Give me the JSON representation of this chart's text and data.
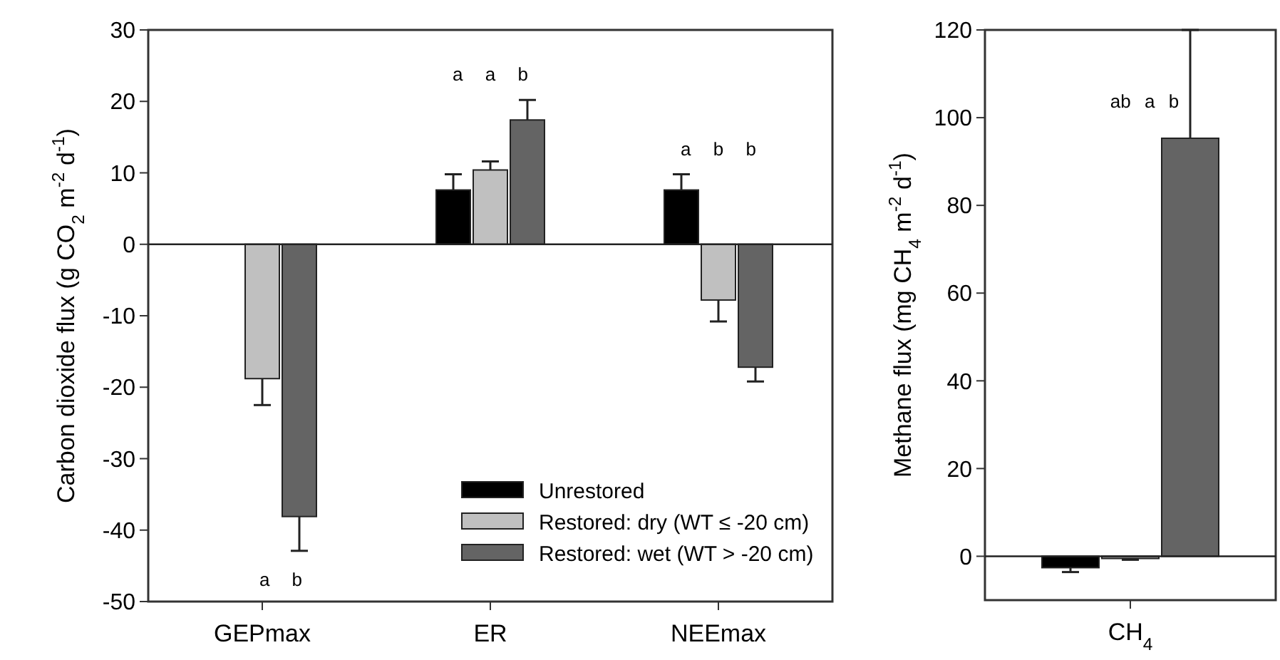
{
  "chart_data": [
    {
      "type": "bar",
      "ylabel": "Carbon dioxide flux (g CO$_{2}$ m$^{-2}$ d$^{-1}$)",
      "categories": [
        "GEPmax",
        "ER",
        "NEEmax"
      ],
      "ylim": [
        -50,
        30
      ],
      "yticks": [
        -50,
        -40,
        -30,
        -20,
        -10,
        0,
        10,
        20,
        30
      ],
      "legend": "bottom right",
      "series": [
        {
          "name": "Unrestored",
          "color": "#000000",
          "values": [
            null,
            7.6,
            7.6
          ],
          "errors": [
            null,
            2.2,
            2.2
          ]
        },
        {
          "name": "Restored: dry (WT ≤ -20 cm)",
          "color": "#c0c0c0",
          "values": [
            -18.8,
            10.4,
            -7.8
          ],
          "errors": [
            3.7,
            1.2,
            3
          ]
        },
        {
          "name": "Restored: wet (WT > -20 cm)",
          "color": "#646464",
          "values": [
            -38.1,
            17.4,
            -17.2
          ],
          "errors": [
            4.8,
            2.8,
            2
          ]
        }
      ],
      "annotations": [
        "a b",
        "a a b",
        "a b b"
      ]
    },
    {
      "type": "bar",
      "ylabel": "Methane flux (mg CH$_{4}$ m$^{-2}$ d$^{-1}$)",
      "categories": [
        "CH$_{4}$"
      ],
      "ylim": [
        -10,
        120
      ],
      "yticks": [
        0,
        20,
        40,
        60,
        80,
        100,
        120
      ],
      "series": [
        {
          "color": "#000000",
          "values": [
            -2.6
          ],
          "errors": [
            1
          ]
        },
        {
          "color": "#c0c0c0",
          "values": [
            -0.5
          ],
          "errors": [
            0.3
          ]
        },
        {
          "color": "#646464",
          "values": [
            95.3
          ],
          "errors": [
            24.7
          ]
        }
      ],
      "annotations": [
        "ab a b"
      ]
    }
  ]
}
